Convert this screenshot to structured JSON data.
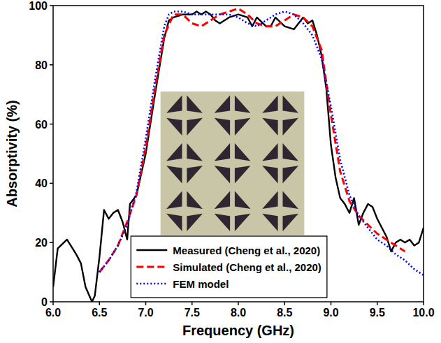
{
  "chart_data": {
    "type": "line",
    "x_label": "Frequency (GHz)",
    "y_label": "Absorptivity (%)",
    "xlim": [
      6.0,
      10.0
    ],
    "xticks": [
      {
        "value": 6.0,
        "label": "6.0"
      },
      {
        "value": 6.5,
        "label": "6.5"
      },
      {
        "value": 7.0,
        "label": "7.0"
      },
      {
        "value": 7.5,
        "label": "7.5"
      },
      {
        "value": 8.0,
        "label": "8.0"
      },
      {
        "value": 8.5,
        "label": "8.5"
      },
      {
        "value": 9.0,
        "label": "9.0"
      },
      {
        "value": 9.5,
        "label": "9.5"
      },
      {
        "value": 10.0,
        "label": "10.0"
      }
    ],
    "ylim": [
      0,
      100
    ],
    "yticks": [
      0,
      20,
      40,
      60,
      80,
      100
    ],
    "grid": false,
    "legend": "bottom",
    "series": [
      {
        "name": "Measured (Cheng et al., 2020)",
        "color": "#000000",
        "line_style": "solid",
        "x": [
          6.0,
          6.05,
          6.15,
          6.25,
          6.3,
          6.35,
          6.42,
          6.45,
          6.5,
          6.55,
          6.6,
          6.65,
          6.7,
          6.75,
          6.8,
          6.83,
          6.9,
          7.0,
          7.1,
          7.2,
          7.25,
          7.3,
          7.4,
          7.5,
          7.55,
          7.6,
          7.65,
          7.7,
          7.75,
          7.8,
          7.9,
          8.0,
          8.1,
          8.15,
          8.2,
          8.3,
          8.35,
          8.4,
          8.5,
          8.6,
          8.7,
          8.75,
          8.8,
          8.85,
          8.9,
          8.95,
          9.0,
          9.05,
          9.1,
          9.15,
          9.2,
          9.25,
          9.3,
          9.35,
          9.4,
          9.45,
          9.5,
          9.55,
          9.6,
          9.65,
          9.7,
          9.75,
          9.8,
          9.85,
          9.9,
          9.95,
          10.0
        ],
        "values": [
          5,
          18,
          21,
          16,
          13,
          5,
          0,
          2,
          15,
          31,
          28,
          30,
          31,
          27,
          21,
          33,
          36,
          50,
          70,
          89,
          95,
          96,
          97,
          97,
          98,
          97,
          98,
          97,
          95,
          94,
          96,
          97,
          96,
          93,
          96,
          93,
          93,
          96,
          93,
          92,
          96,
          94,
          95,
          90,
          83,
          72,
          53,
          42,
          35,
          33,
          30,
          35,
          26,
          30,
          33,
          32,
          28,
          25,
          22,
          17,
          20,
          21,
          20,
          21,
          19,
          20,
          25
        ]
      },
      {
        "name": "Simulated (Cheng et al., 2020)",
        "color": "#ff0000",
        "line_style": "dashed",
        "x": [
          6.5,
          6.6,
          6.7,
          6.8,
          6.9,
          7.0,
          7.1,
          7.2,
          7.3,
          7.4,
          7.5,
          7.6,
          7.7,
          7.8,
          7.9,
          8.0,
          8.1,
          8.2,
          8.3,
          8.4,
          8.5,
          8.6,
          8.7,
          8.8,
          8.9,
          9.0,
          9.1,
          9.2,
          9.3,
          9.4,
          9.5,
          9.6,
          9.7,
          9.8
        ],
        "values": [
          10,
          14,
          19,
          27,
          36,
          52,
          72,
          90,
          97,
          97,
          94,
          93,
          95,
          97,
          98,
          99,
          97,
          94,
          93,
          93,
          95,
          97,
          96,
          93,
          85,
          63,
          44,
          34,
          29,
          26,
          23,
          21,
          19,
          17
        ]
      },
      {
        "name": "FEM model",
        "color": "#0000ff",
        "line_style": "dotted",
        "x": [
          6.5,
          6.6,
          6.7,
          6.8,
          6.9,
          7.0,
          7.1,
          7.2,
          7.25,
          7.3,
          7.4,
          7.5,
          7.6,
          7.7,
          7.8,
          7.9,
          8.0,
          8.1,
          8.2,
          8.3,
          8.4,
          8.5,
          8.6,
          8.7,
          8.8,
          8.9,
          9.0,
          9.1,
          9.2,
          9.3,
          9.4,
          9.5,
          9.6,
          9.7,
          9.8,
          9.9,
          10.0
        ],
        "values": [
          10,
          14,
          19,
          26,
          37,
          55,
          75,
          93,
          97,
          98,
          98,
          97,
          97,
          97,
          97,
          97,
          96,
          94,
          93,
          95,
          97,
          98,
          97,
          94,
          90,
          82,
          66,
          48,
          36,
          29,
          25,
          21,
          19,
          16,
          14,
          11,
          9
        ]
      }
    ]
  }
}
